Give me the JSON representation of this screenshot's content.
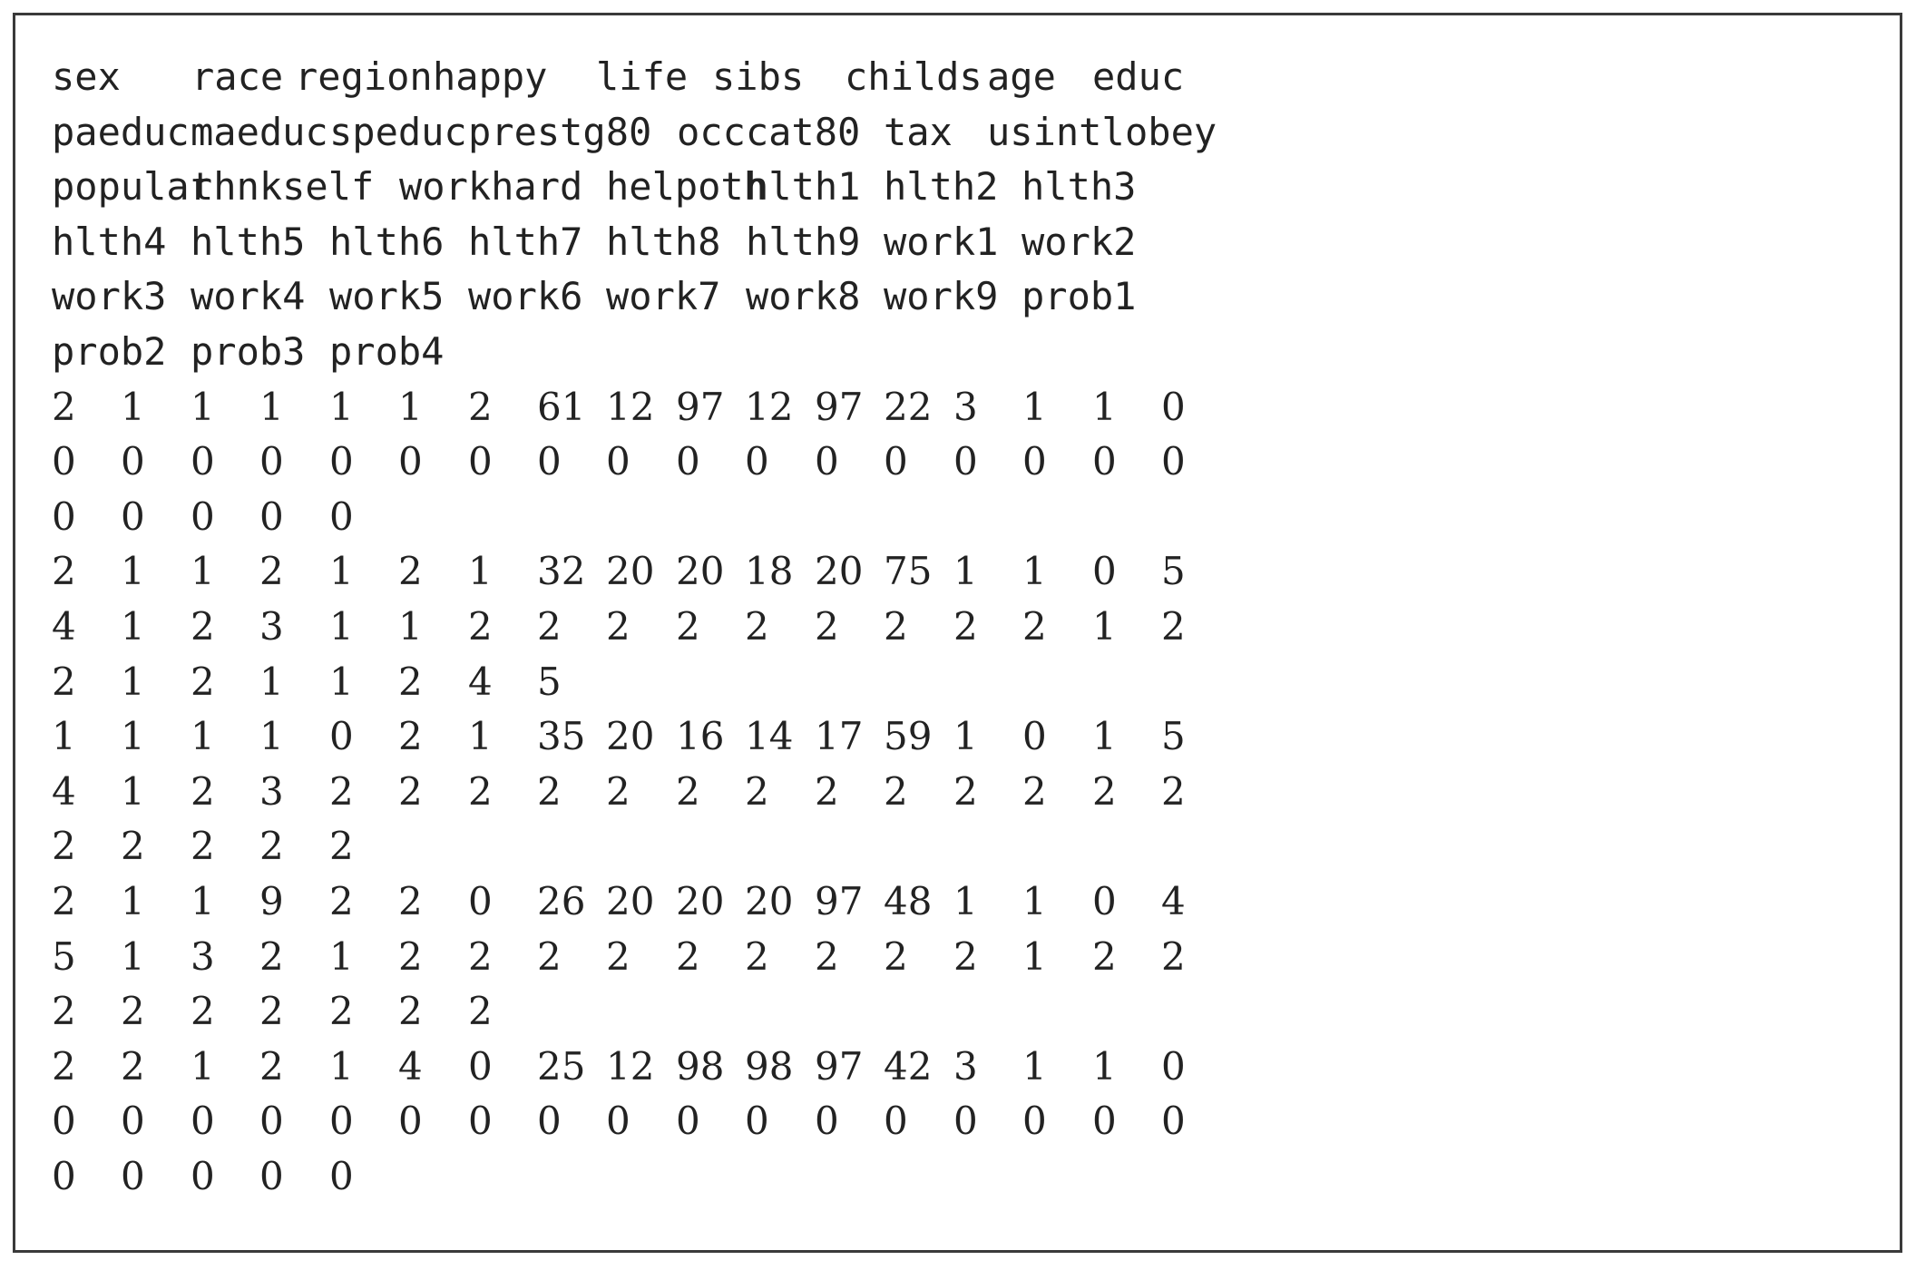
{
  "header_lines": [
    [
      "sex",
      "race",
      "region",
      "happy",
      "life",
      "sibs",
      "childs",
      "age",
      "educ"
    ],
    [
      "paeduc",
      "maeduc",
      "speduc",
      "prestg80",
      "occcat80",
      "tax",
      "usintl",
      "obey"
    ],
    [
      "popular",
      "thnkself",
      "workhard",
      "helpoth",
      "hlth1",
      "hlth2",
      "hlth3"
    ],
    [
      "hlth4",
      "hlth5",
      "hlth6",
      "hlth7",
      "hlth8",
      "hlth9",
      "work1",
      "work2"
    ],
    [
      "work3",
      "work4",
      "work5",
      "work6",
      "work7",
      "work8",
      "work9",
      "prob1"
    ],
    [
      "prob2",
      "prob3",
      "prob4"
    ]
  ],
  "data_lines": [
    [
      "2",
      "1",
      "1",
      "1",
      "1",
      "1",
      "2",
      "61",
      "12",
      "97",
      "12",
      "97",
      "22",
      "3",
      "1",
      "1",
      "0"
    ],
    [
      "0",
      "0",
      "0",
      "0",
      "0",
      "0",
      "0",
      "0",
      "0",
      "0",
      "0",
      "0",
      "0",
      "0",
      "0",
      "0",
      "0"
    ],
    [
      "0",
      "0",
      "0",
      "0",
      "0"
    ],
    [
      "2",
      "1",
      "1",
      "2",
      "1",
      "2",
      "1",
      "32",
      "20",
      "20",
      "18",
      "20",
      "75",
      "1",
      "1",
      "0",
      "5"
    ],
    [
      "4",
      "1",
      "2",
      "3",
      "1",
      "1",
      "2",
      "2",
      "2",
      "2",
      "2",
      "2",
      "2",
      "2",
      "2",
      "1",
      "2"
    ],
    [
      "2",
      "1",
      "2",
      "1",
      "1",
      "2",
      "4",
      "5"
    ],
    [
      "1",
      "1",
      "1",
      "1",
      "0",
      "2",
      "1",
      "35",
      "20",
      "16",
      "14",
      "17",
      "59",
      "1",
      "0",
      "1",
      "5"
    ],
    [
      "4",
      "1",
      "2",
      "3",
      "2",
      "2",
      "2",
      "2",
      "2",
      "2",
      "2",
      "2",
      "2",
      "2",
      "2",
      "2",
      "2"
    ],
    [
      "2",
      "2",
      "2",
      "2",
      "2"
    ],
    [
      "2",
      "1",
      "1",
      "9",
      "2",
      "2",
      "0",
      "26",
      "20",
      "20",
      "20",
      "97",
      "48",
      "1",
      "1",
      "0",
      "4"
    ],
    [
      "5",
      "1",
      "3",
      "2",
      "1",
      "2",
      "2",
      "2",
      "2",
      "2",
      "2",
      "2",
      "2",
      "2",
      "1",
      "2",
      "2"
    ],
    [
      "2",
      "2",
      "2",
      "2",
      "2",
      "2",
      "2"
    ],
    [
      "2",
      "2",
      "1",
      "2",
      "1",
      "4",
      "0",
      "25",
      "12",
      "98",
      "98",
      "97",
      "42",
      "3",
      "1",
      "1",
      "0"
    ],
    [
      "0",
      "0",
      "0",
      "0",
      "0",
      "0",
      "0",
      "0",
      "0",
      "0",
      "0",
      "0",
      "0",
      "0",
      "0",
      "0",
      "0"
    ],
    [
      "0",
      "0",
      "0",
      "0",
      "0"
    ]
  ]
}
